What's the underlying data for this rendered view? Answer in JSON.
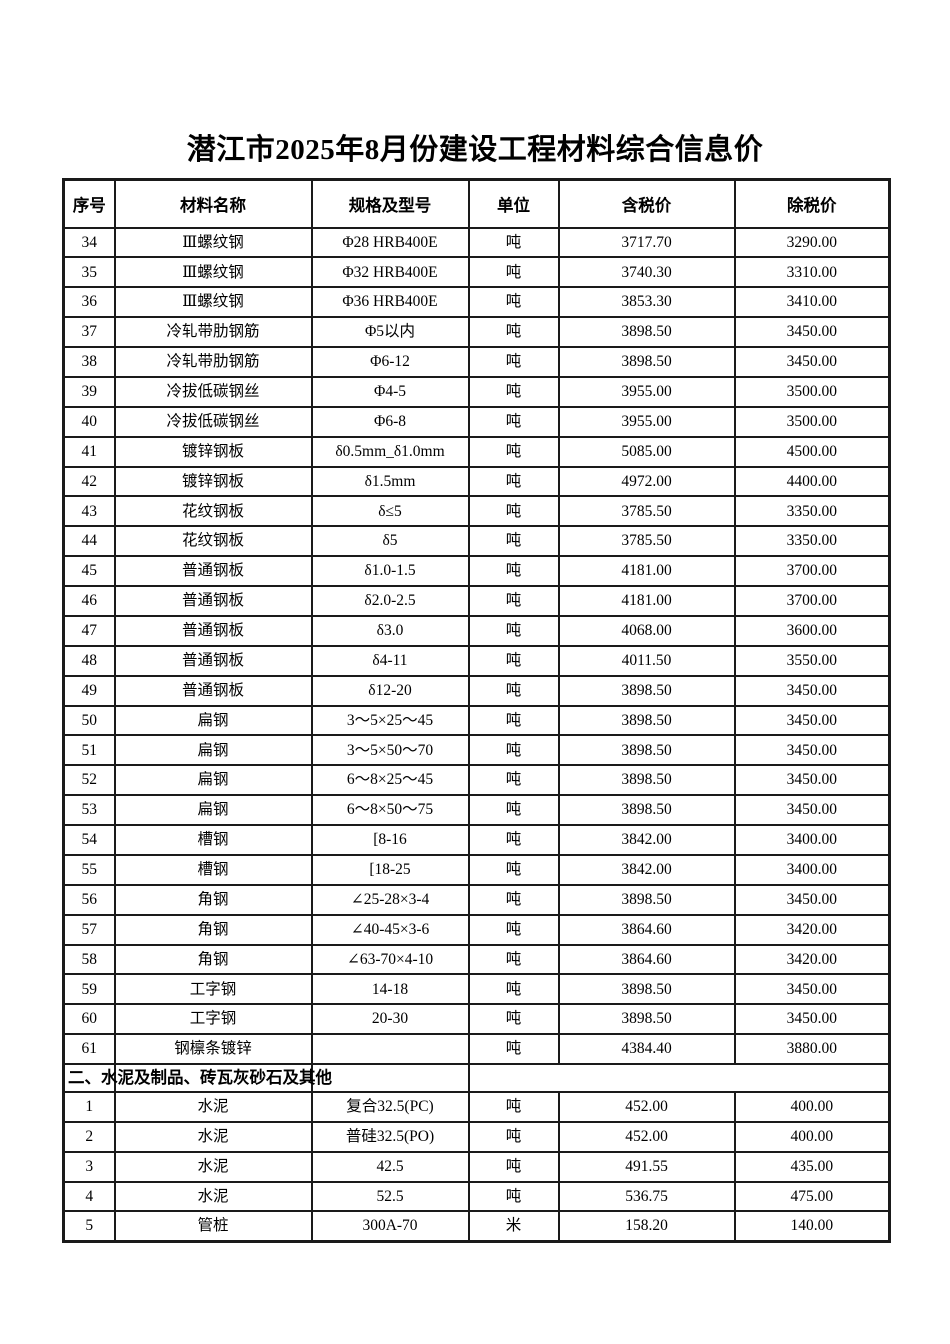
{
  "page": {
    "title": "潜江市2025年8月份建设工程材料综合信息价"
  },
  "table": {
    "columns": [
      "序号",
      "材料名称",
      "规格及型号",
      "单位",
      "含税价",
      "除税价"
    ],
    "rows": [
      {
        "no": "34",
        "name": "Ⅲ螺纹钢",
        "spec": "Φ28 HRB400E",
        "unit": "吨",
        "tax": "3717.70",
        "notax": "3290.00"
      },
      {
        "no": "35",
        "name": "Ⅲ螺纹钢",
        "spec": "Φ32 HRB400E",
        "unit": "吨",
        "tax": "3740.30",
        "notax": "3310.00"
      },
      {
        "no": "36",
        "name": "Ⅲ螺纹钢",
        "spec": "Φ36 HRB400E",
        "unit": "吨",
        "tax": "3853.30",
        "notax": "3410.00"
      },
      {
        "no": "37",
        "name": "冷轧带肋钢筋",
        "spec": "Φ5以内",
        "unit": "吨",
        "tax": "3898.50",
        "notax": "3450.00"
      },
      {
        "no": "38",
        "name": "冷轧带肋钢筋",
        "spec": "Φ6-12",
        "unit": "吨",
        "tax": "3898.50",
        "notax": "3450.00"
      },
      {
        "no": "39",
        "name": "冷拔低碳钢丝",
        "spec": "Φ4-5",
        "unit": "吨",
        "tax": "3955.00",
        "notax": "3500.00"
      },
      {
        "no": "40",
        "name": "冷拔低碳钢丝",
        "spec": "Φ6-8",
        "unit": "吨",
        "tax": "3955.00",
        "notax": "3500.00"
      },
      {
        "no": "41",
        "name": "镀锌钢板",
        "spec": "δ0.5mm_δ1.0mm",
        "unit": "吨",
        "tax": "5085.00",
        "notax": "4500.00"
      },
      {
        "no": "42",
        "name": "镀锌钢板",
        "spec": "δ1.5mm",
        "unit": "吨",
        "tax": "4972.00",
        "notax": "4400.00"
      },
      {
        "no": "43",
        "name": "花纹钢板",
        "spec": "δ≤5",
        "unit": "吨",
        "tax": "3785.50",
        "notax": "3350.00"
      },
      {
        "no": "44",
        "name": "花纹钢板",
        "spec": "δ5",
        "unit": "吨",
        "tax": "3785.50",
        "notax": "3350.00"
      },
      {
        "no": "45",
        "name": "普通钢板",
        "spec": "δ1.0-1.5",
        "unit": "吨",
        "tax": "4181.00",
        "notax": "3700.00"
      },
      {
        "no": "46",
        "name": "普通钢板",
        "spec": "δ2.0-2.5",
        "unit": "吨",
        "tax": "4181.00",
        "notax": "3700.00"
      },
      {
        "no": "47",
        "name": "普通钢板",
        "spec": "δ3.0",
        "unit": "吨",
        "tax": "4068.00",
        "notax": "3600.00"
      },
      {
        "no": "48",
        "name": "普通钢板",
        "spec": "δ4-11",
        "unit": "吨",
        "tax": "4011.50",
        "notax": "3550.00"
      },
      {
        "no": "49",
        "name": "普通钢板",
        "spec": "δ12-20",
        "unit": "吨",
        "tax": "3898.50",
        "notax": "3450.00"
      },
      {
        "no": "50",
        "name": "扁钢",
        "spec": "3～5×25～45",
        "unit": "吨",
        "tax": "3898.50",
        "notax": "3450.00"
      },
      {
        "no": "51",
        "name": "扁钢",
        "spec": "3～5×50～70",
        "unit": "吨",
        "tax": "3898.50",
        "notax": "3450.00"
      },
      {
        "no": "52",
        "name": "扁钢",
        "spec": "6～8×25～45",
        "unit": "吨",
        "tax": "3898.50",
        "notax": "3450.00"
      },
      {
        "no": "53",
        "name": "扁钢",
        "spec": "6～8×50～75",
        "unit": "吨",
        "tax": "3898.50",
        "notax": "3450.00"
      },
      {
        "no": "54",
        "name": "槽钢",
        "spec": "[8-16",
        "unit": "吨",
        "tax": "3842.00",
        "notax": "3400.00"
      },
      {
        "no": "55",
        "name": "槽钢",
        "spec": "[18-25",
        "unit": "吨",
        "tax": "3842.00",
        "notax": "3400.00"
      },
      {
        "no": "56",
        "name": "角钢",
        "spec": "∠25-28×3-4",
        "unit": "吨",
        "tax": "3898.50",
        "notax": "3450.00"
      },
      {
        "no": "57",
        "name": "角钢",
        "spec": "∠40-45×3-6",
        "unit": "吨",
        "tax": "3864.60",
        "notax": "3420.00"
      },
      {
        "no": "58",
        "name": "角钢",
        "spec": "∠63-70×4-10",
        "unit": "吨",
        "tax": "3864.60",
        "notax": "3420.00"
      },
      {
        "no": "59",
        "name": "工字钢",
        "spec": "14-18",
        "unit": "吨",
        "tax": "3898.50",
        "notax": "3450.00"
      },
      {
        "no": "60",
        "name": "工字钢",
        "spec": "20-30",
        "unit": "吨",
        "tax": "3898.50",
        "notax": "3450.00"
      },
      {
        "no": "61",
        "name": "钢檩条镀锌",
        "spec": "",
        "unit": "吨",
        "tax": "4384.40",
        "notax": "3880.00"
      },
      {
        "section": "二、水泥及制品、砖瓦灰砂石及其他"
      },
      {
        "no": "1",
        "name": "水泥",
        "spec": "复合32.5(PC)",
        "unit": "吨",
        "tax": "452.00",
        "notax": "400.00"
      },
      {
        "no": "2",
        "name": "水泥",
        "spec": "普硅32.5(PO)",
        "unit": "吨",
        "tax": "452.00",
        "notax": "400.00"
      },
      {
        "no": "3",
        "name": "水泥",
        "spec": "42.5",
        "unit": "吨",
        "tax": "491.55",
        "notax": "435.00"
      },
      {
        "no": "4",
        "name": "水泥",
        "spec": "52.5",
        "unit": "吨",
        "tax": "536.75",
        "notax": "475.00"
      },
      {
        "no": "5",
        "name": "管桩",
        "spec": "300A-70",
        "unit": "米",
        "tax": "158.20",
        "notax": "140.00"
      }
    ]
  }
}
